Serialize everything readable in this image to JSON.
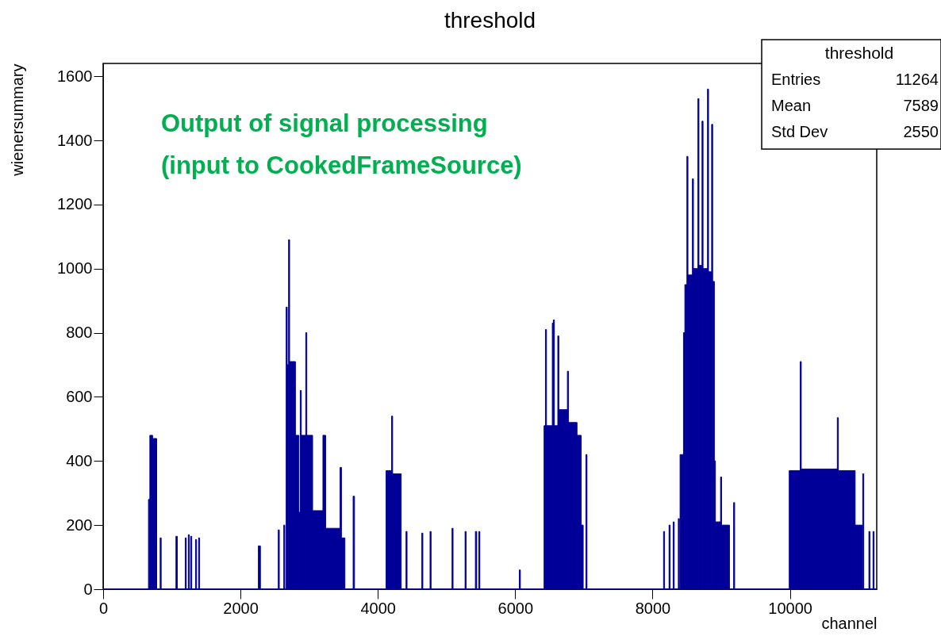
{
  "chart_data": {
    "type": "histogram",
    "title": "threshold",
    "xlabel": "channel",
    "ylabel": "wienersummary",
    "annotations": [
      "Output of signal processing",
      "(input to CookedFrameSource)",
      "threshold",
      "Entries 11264",
      "Mean 7589",
      "Std Dev 2550"
    ],
    "bins": [
      0,
      660,
      680,
      720,
      780,
      830,
      845,
      1060,
      1080,
      1195,
      1210,
      1240,
      1255,
      1275,
      1290,
      1345,
      1360,
      1390,
      1405,
      2260,
      2290,
      2550,
      2565,
      2630,
      2645,
      2665,
      2680,
      2700,
      2715,
      2800,
      2850,
      2870,
      2885,
      2950,
      2965,
      3050,
      3200,
      3240,
      3450,
      3470,
      3520,
      3640,
      3660,
      4120,
      4200,
      4215,
      4340,
      4410,
      4425,
      4640,
      4655,
      4760,
      4775,
      5080,
      5095,
      5270,
      5285,
      5420,
      5440,
      5470,
      5485,
      6060,
      6075,
      6420,
      6440,
      6455,
      6540,
      6555,
      6570,
      6620,
      6635,
      6760,
      6775,
      6900,
      6960,
      6990,
      7030,
      7045,
      8160,
      8175,
      8240,
      8255,
      8300,
      8315,
      8375,
      8390,
      8400,
      8450,
      8470,
      8500,
      8515,
      8580,
      8595,
      8660,
      8675,
      8720,
      8735,
      8800,
      8815,
      8860,
      8875,
      8900,
      8915,
      8990,
      9005,
      9120,
      9180,
      9195,
      9990,
      10150,
      10165,
      10690,
      10705,
      10950,
      11050,
      11060,
      11075,
      11150,
      11165,
      11210,
      11225,
      11264
    ],
    "values": [
      0,
      280,
      480,
      470,
      0,
      160,
      0,
      165,
      0,
      160,
      0,
      170,
      0,
      165,
      0,
      155,
      0,
      160,
      0,
      135,
      0,
      185,
      0,
      200,
      0,
      880,
      700,
      1090,
      710,
      480,
      240,
      620,
      480,
      800,
      480,
      245,
      480,
      190,
      380,
      160,
      0,
      290,
      0,
      370,
      540,
      360,
      0,
      180,
      0,
      175,
      0,
      180,
      0,
      190,
      0,
      180,
      0,
      180,
      0,
      180,
      0,
      60,
      0,
      510,
      810,
      510,
      830,
      840,
      510,
      790,
      560,
      680,
      520,
      480,
      200,
      0,
      420,
      0,
      180,
      0,
      200,
      0,
      210,
      0,
      220,
      0,
      420,
      800,
      950,
      1350,
      980,
      1280,
      1000,
      1530,
      1010,
      1460,
      1000,
      1560,
      990,
      1450,
      960,
      400,
      210,
      350,
      200,
      0,
      270,
      0,
      370,
      710,
      375,
      535,
      370,
      200,
      0,
      360,
      0,
      180,
      0,
      180,
      0
    ],
    "color": "#000099",
    "xlim": [
      0,
      11264
    ],
    "xticks": [
      0,
      2000,
      4000,
      6000,
      8000,
      10000
    ],
    "ylim": [
      0,
      1640
    ],
    "yticks": [
      0,
      200,
      400,
      600,
      800,
      1000,
      1200,
      1400,
      1600
    ],
    "grid": false
  }
}
